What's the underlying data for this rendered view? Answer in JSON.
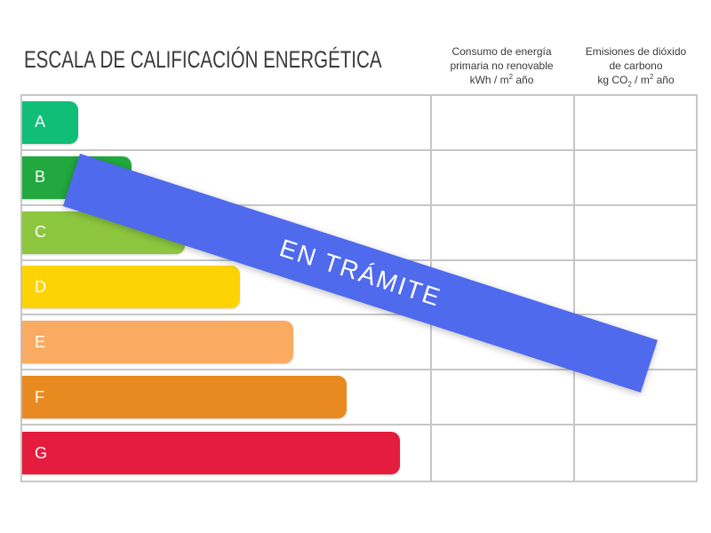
{
  "title": "ESCALA DE CALIFICACIÓN ENERGÉTICA",
  "headers": {
    "col1": {
      "line1": "Consumo de energía",
      "line2": "primaria no renovable",
      "units": {
        "pre": "kWh / m",
        "sup": "2",
        "post": " año"
      }
    },
    "col2": {
      "line1": "Emisiones de dióxido",
      "line2": "de carbono",
      "units": {
        "pre": "kg CO",
        "sub": "2",
        "mid": " / m",
        "sup": "2",
        "post": " año"
      }
    }
  },
  "banner": {
    "text": "EN TRÁMITE",
    "color": "#4f6aec"
  },
  "grid_line_color": "#c7c7c7",
  "text_color": "#3a3a3a",
  "chart_data": {
    "type": "bar",
    "orientation": "horizontal",
    "title": "ESCALA DE CALIFICACIÓN ENERGÉTICA",
    "categories": [
      "A",
      "B",
      "C",
      "D",
      "E",
      "F",
      "G"
    ],
    "values": [
      63,
      123,
      183,
      245,
      305,
      365,
      425
    ],
    "values_unit": "bar length in px (ordinal scale, no numeric axis shown)",
    "colors": [
      "#10be77",
      "#21a83e",
      "#8cc63f",
      "#fed304",
      "#faab62",
      "#e98a20",
      "#e41c3d"
    ],
    "columns": [
      "Consumo de energía primaria no renovable kWh / m² año",
      "Emisiones de dióxido de carbono kg CO₂ / m² año"
    ],
    "column_cell_values": [
      null,
      null
    ],
    "overlay_text": "EN TRÁMITE",
    "legend": "none",
    "grid": true
  }
}
